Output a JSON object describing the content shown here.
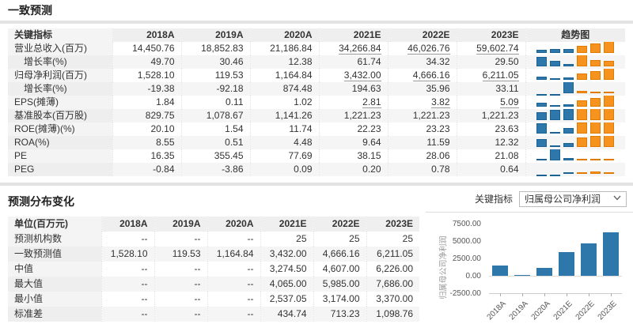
{
  "colors": {
    "trend_blue": "#2e77aa",
    "trend_blue_border": "#1b6395",
    "trend_orange": "#f6921e",
    "trend_orange_border": "#e07b00",
    "chart_bar": "#2e77aa",
    "header_bg": "#efefef",
    "stripe_bg": "#f5f5f5"
  },
  "section1": {
    "title": "一致预测",
    "table": {
      "label_header": "关键指标",
      "year_headers": [
        "2018A",
        "2019A",
        "2020A",
        "2021E",
        "2022E",
        "2023E"
      ],
      "trend_header": "趋势图",
      "rows": [
        {
          "label": "营业总收入(百万)",
          "indent": false,
          "underlineE": true,
          "values": [
            "14,450.76",
            "18,852.83",
            "21,186.84",
            "34,266.84",
            "46,026.76",
            "59,602.74"
          ]
        },
        {
          "label": "增长率(%)",
          "indent": true,
          "underlineE": false,
          "values": [
            "49.70",
            "30.46",
            "12.38",
            "61.74",
            "34.32",
            "29.50"
          ]
        },
        {
          "label": "归母净利润(百万)",
          "indent": false,
          "underlineE": true,
          "values": [
            "1,528.10",
            "119.53",
            "1,164.84",
            "3,432.00",
            "4,666.16",
            "6,211.05"
          ]
        },
        {
          "label": "增长率(%)",
          "indent": true,
          "underlineE": false,
          "values": [
            "-19.38",
            "-92.18",
            "874.48",
            "194.63",
            "35.96",
            "33.11"
          ]
        },
        {
          "label": "EPS(摊薄)",
          "indent": false,
          "underlineE": true,
          "values": [
            "1.84",
            "0.11",
            "1.02",
            "2.81",
            "3.82",
            "5.09"
          ]
        },
        {
          "label": "基准股本(百万股)",
          "indent": false,
          "underlineE": false,
          "values": [
            "829.75",
            "1,078.67",
            "1,141.26",
            "1,221.23",
            "1,221.23",
            "1,221.23"
          ]
        },
        {
          "label": "ROE(摊薄)(%)",
          "indent": false,
          "underlineE": false,
          "values": [
            "20.10",
            "1.54",
            "11.74",
            "22.23",
            "23.23",
            "23.63"
          ]
        },
        {
          "label": "ROA(%)",
          "indent": false,
          "underlineE": false,
          "values": [
            "8.55",
            "0.51",
            "4.48",
            "9.64",
            "11.59",
            "12.32"
          ]
        },
        {
          "label": "PE",
          "indent": false,
          "underlineE": false,
          "values": [
            "16.35",
            "355.45",
            "77.69",
            "38.15",
            "28.06",
            "21.08"
          ]
        },
        {
          "label": "PEG",
          "indent": false,
          "underlineE": false,
          "values": [
            "-0.84",
            "-3.86",
            "0.09",
            "0.20",
            "0.78",
            "0.64"
          ]
        }
      ]
    }
  },
  "section2": {
    "title": "预测分布变化",
    "selector_label": "关键指标",
    "selector_value": "归属母公司净利润",
    "table": {
      "label_header": "单位(百万元)",
      "year_headers": [
        "2018A",
        "2019A",
        "2020A",
        "2021E",
        "2022E",
        "2023E"
      ],
      "rows": [
        {
          "label": "预测机构数",
          "values": [
            "--",
            "--",
            "--",
            "25",
            "25",
            "25"
          ]
        },
        {
          "label": "一致预测值",
          "values": [
            "1,528.10",
            "119.53",
            "1,164.84",
            "3,432.00",
            "4,666.16",
            "6,211.05"
          ]
        },
        {
          "label": "中值",
          "values": [
            "--",
            "--",
            "--",
            "3,274.50",
            "4,607.00",
            "6,226.00"
          ]
        },
        {
          "label": "最大值",
          "values": [
            "--",
            "--",
            "--",
            "4,065.00",
            "5,985.00",
            "7,686.00"
          ]
        },
        {
          "label": "最小值",
          "values": [
            "--",
            "--",
            "--",
            "2,537.05",
            "3,174.00",
            "3,370.00"
          ]
        },
        {
          "label": "标准差",
          "values": [
            "--",
            "--",
            "--",
            "434.74",
            "713.23",
            "1,098.76"
          ]
        }
      ]
    }
  },
  "chart_data": {
    "type": "bar",
    "categories": [
      "2018A",
      "2019A",
      "2020A",
      "2021E",
      "2022E",
      "2023E"
    ],
    "values": [
      1528.1,
      119.53,
      1164.84,
      3432.0,
      4666.16,
      6211.05
    ],
    "title": "",
    "xlabel": "",
    "ylabel": "归属母公司净利润",
    "ylim": [
      -2500,
      7500
    ],
    "ytick_labels": [
      "7500.00",
      "5000.00",
      "2500.00",
      "0.00",
      "-2500.00"
    ],
    "yticks": [
      7500,
      5000,
      2500,
      0,
      -2500
    ],
    "grid": false,
    "legend": "none"
  }
}
